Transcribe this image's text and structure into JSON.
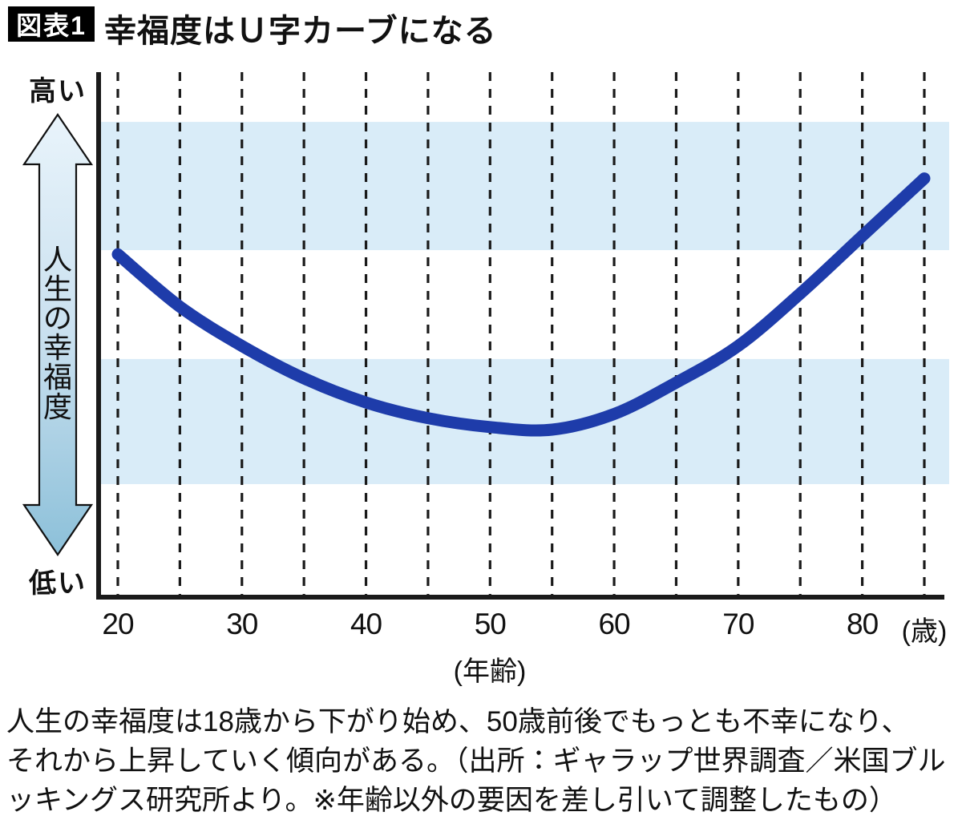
{
  "header": {
    "badge": "図表1",
    "title": "幸福度はＵ字カーブになる"
  },
  "caption": {
    "lines": [
      "人生の幸福度は18歳から下がり始め、50歳前後でもっとも不幸になり、",
      "それから上昇していく傾向がある。（出所：ギャラップ世界調査／米国ブル",
      "ッキングス研究所より。※年齢以外の要因を差し引いて調整したもの）"
    ]
  },
  "colors": {
    "curve": "#1e3caa",
    "band": "#d9ecf8",
    "grid": "#1a1a1a",
    "axis": "#1a1a1a",
    "arrow_gradient_top": "#e9f4fb",
    "arrow_gradient_mid": "#c9e0ef",
    "arrow_gradient_bottom": "#8cc0d9",
    "arrow_outline": "#111111",
    "badge_bg": "#000000",
    "badge_text": "#ffffff",
    "text": "#111111"
  },
  "chart_data": {
    "type": "line",
    "title": "幸福度はＵ字カーブになる",
    "xlabel": "(年齢)",
    "x_unit_label": "(歳)",
    "ylabel": "人生の幸福度",
    "y_high_label": "高い",
    "y_low_label": "低い",
    "x_range": [
      20,
      85
    ],
    "y_range": [
      0,
      10
    ],
    "grid": "dashed-vertical-every-5-years",
    "gridline_ages": [
      20,
      25,
      30,
      35,
      40,
      45,
      50,
      55,
      60,
      65,
      70,
      75,
      80,
      85
    ],
    "x_ticks": [
      {
        "age": 20,
        "label": "20"
      },
      {
        "age": 30,
        "label": "30"
      },
      {
        "age": 40,
        "label": "40"
      },
      {
        "age": 50,
        "label": "50"
      },
      {
        "age": 60,
        "label": "60"
      },
      {
        "age": 70,
        "label": "70"
      },
      {
        "age": 80,
        "label": "80"
      },
      {
        "age": 85,
        "label": "(歳)",
        "unit": true
      }
    ],
    "bands": [
      {
        "from": 6.63,
        "to": 9.08
      },
      {
        "from": 2.16,
        "to": 4.55
      }
    ],
    "series": [
      {
        "name": "人生の幸福度（U字カーブ）",
        "points": [
          {
            "age": 20,
            "value": 6.55
          },
          {
            "age": 25,
            "value": 5.55
          },
          {
            "age": 30,
            "value": 4.8
          },
          {
            "age": 35,
            "value": 4.18
          },
          {
            "age": 40,
            "value": 3.72
          },
          {
            "age": 45,
            "value": 3.42
          },
          {
            "age": 50,
            "value": 3.25
          },
          {
            "age": 55,
            "value": 3.2
          },
          {
            "age": 60,
            "value": 3.5
          },
          {
            "age": 65,
            "value": 4.1
          },
          {
            "age": 70,
            "value": 4.8
          },
          {
            "age": 75,
            "value": 5.8
          },
          {
            "age": 80,
            "value": 6.9
          },
          {
            "age": 85,
            "value": 8.0
          }
        ]
      }
    ]
  }
}
